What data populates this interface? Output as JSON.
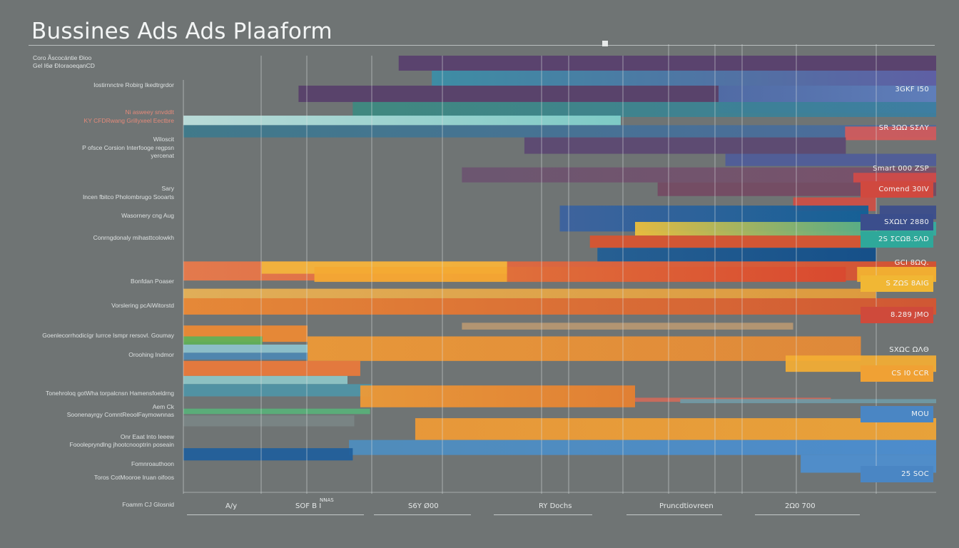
{
  "title": "Bussines Ads Ads Plaaform",
  "subtitle": [
    "Coro Ãscocántie Ðioo",
    "Gel I6ø ÐIoraoeqanCD"
  ],
  "chart_data": {
    "type": "bar",
    "orientation": "horizontal",
    "title": "Bussines Ads Ads Plaaform",
    "xlabel": "",
    "ylabel": "",
    "xlim": [
      0,
      100
    ],
    "grid": true,
    "row_labels": [
      {
        "text": "Iostirnnctre Robirg Ikedtrgrdor",
        "row": 0
      },
      {
        "text": "Ni asweey snvddlt",
        "row": 1,
        "accent": true
      },
      {
        "text": "KY CFDRwang Grillyxeel Eectbre",
        "row": 1.3,
        "accent": true
      },
      {
        "text": "Wiloscit",
        "row": 2
      },
      {
        "text": "P ofsce Corsion Interfooge regpsn",
        "row": 2.3
      },
      {
        "text": "yercenat",
        "row": 2.6
      },
      {
        "text": "Sary",
        "row": 3.8
      },
      {
        "text": "Incen fbitco Pholombrugo Sooarts",
        "row": 4.1
      },
      {
        "text": "Wasornery cng Aug",
        "row": 4.8
      },
      {
        "text": "Conrngdonaly mihasttcolowkh",
        "row": 5.6
      },
      {
        "text": "Bonfdan Poaser",
        "row": 7.2
      },
      {
        "text": "Vorslering pcAiWitorstd",
        "row": 8.1
      },
      {
        "text": "Goenlecorrhodicígr Iurrce Ismpr rersovl. Goumay",
        "row": 9.2
      },
      {
        "text": "Oroohing Indmor",
        "row": 9.9
      },
      {
        "text": "Tonehroloq gotWha torpalcnsn Hamensfoeldrng",
        "row": 11.3
      },
      {
        "text": "Aem Ck",
        "row": 11.8
      },
      {
        "text": "Soonenayrgy ComntReoolFaymownnas",
        "row": 12.1
      },
      {
        "text": "Onr Eaat lnto Ieeew",
        "row": 12.9
      },
      {
        "text": "Fooolepryndlng jhootcnooptrin poseain",
        "row": 13.2
      },
      {
        "text": "Fomnroauthoon",
        "row": 13.9
      },
      {
        "text": "Toros CotMooroe Iruan oifoos",
        "row": 14.4
      },
      {
        "text": "Foamm CJ Glosnid",
        "row": 15.4
      }
    ],
    "bars": [
      {
        "y": 0.0,
        "h": 0.55,
        "start": 28.6,
        "end": 100,
        "color": "#583f6e"
      },
      {
        "y": 0.55,
        "h": 0.55,
        "start": 33.0,
        "end": 100,
        "color": "#3a8fa8",
        "end_color": "#5d5ea8"
      },
      {
        "y": 1.1,
        "h": 0.6,
        "start": 15.3,
        "end": 71.1,
        "color": "#573f6b"
      },
      {
        "y": 1.1,
        "h": 1.0,
        "start": 71.1,
        "end": 100,
        "color": "#4e6aa8",
        "end_color": "#5e7fbf"
      },
      {
        "y": 1.7,
        "h": 0.55,
        "start": 22.5,
        "end": 100,
        "color": "#3c8a80",
        "end_color": "#3b7ea0"
      },
      {
        "y": 2.2,
        "h": 0.35,
        "start": 0.0,
        "end": 58.1,
        "color": "#bfe2df",
        "end_color": "#7fd1cc"
      },
      {
        "y": 2.55,
        "h": 0.45,
        "start": 0.0,
        "end": 100,
        "color": "#3d7a8c",
        "end_color": "#4a6aa0"
      },
      {
        "y": 2.6,
        "h": 0.5,
        "start": 87.9,
        "end": 100,
        "color": "#d35a5a"
      },
      {
        "y": 3.0,
        "h": 0.6,
        "start": 45.3,
        "end": 88.0,
        "color": "#5b4872"
      },
      {
        "y": 3.6,
        "h": 0.45,
        "start": 72.0,
        "end": 100,
        "color": "#4f5c9a"
      },
      {
        "y": 4.1,
        "h": 0.55,
        "start": 37.0,
        "end": 100,
        "color": "#6b5470",
        "end_color": "#7a4f69"
      },
      {
        "y": 4.3,
        "h": 0.45,
        "start": 89.0,
        "end": 100,
        "color": "#d24a48"
      },
      {
        "y": 4.65,
        "h": 0.5,
        "start": 63.0,
        "end": 100,
        "color": "#744a63"
      },
      {
        "y": 5.2,
        "h": 0.5,
        "start": 81.0,
        "end": 92.0,
        "color": "#cf4f45"
      },
      {
        "y": 5.5,
        "h": 0.95,
        "start": 50.0,
        "end": 91.0,
        "color": "#3b62a0",
        "end_color": "#0f5f98"
      },
      {
        "y": 5.5,
        "h": 0.5,
        "start": 92.5,
        "end": 100,
        "color": "#3b4e8c"
      },
      {
        "y": 6.1,
        "h": 0.5,
        "start": 60.0,
        "end": 100,
        "color": "#f0c03a",
        "end_color": "#2fae9c"
      },
      {
        "y": 6.1,
        "h": 0.5,
        "start": 92.5,
        "end": 100,
        "color": "#39aa9c"
      },
      {
        "y": 6.6,
        "h": 0.45,
        "start": 54.0,
        "end": 91.0,
        "color": "#d9542f"
      },
      {
        "y": 7.05,
        "h": 0.5,
        "start": 55.0,
        "end": 92.0,
        "color": "#215e95",
        "end_color": "#0f4d8a"
      },
      {
        "y": 7.55,
        "h": 0.7,
        "start": 0.0,
        "end": 100,
        "color": "#ec7a4a",
        "end_color": "#d9502e"
      },
      {
        "y": 7.55,
        "h": 0.45,
        "start": 10.4,
        "end": 43.0,
        "color": "#f2b63c"
      },
      {
        "y": 7.75,
        "h": 0.55,
        "start": 17.4,
        "end": 43.0,
        "color": "#f4a933"
      },
      {
        "y": 7.75,
        "h": 0.55,
        "start": 43.0,
        "end": 88.0,
        "color": "#e0703a",
        "end_color": "#d9482f"
      },
      {
        "y": 7.75,
        "h": 0.55,
        "start": 89.5,
        "end": 100,
        "color": "#f3b431"
      },
      {
        "y": 8.55,
        "h": 0.35,
        "start": 0.0,
        "end": 92.0,
        "color": "#e9b256",
        "end_color": "#e59d3a"
      },
      {
        "y": 8.9,
        "h": 0.6,
        "start": 0.0,
        "end": 100,
        "color": "#ee8a33",
        "end_color": "#d7552f"
      },
      {
        "y": 9.8,
        "h": 0.25,
        "start": 37.0,
        "end": 81.0,
        "color": "#b79872"
      },
      {
        "y": 9.9,
        "h": 0.6,
        "start": 0.0,
        "end": 16.5,
        "color": "#ee8a33"
      },
      {
        "y": 10.3,
        "h": 0.3,
        "start": 0.0,
        "end": 10.5,
        "color": "#5fb058"
      },
      {
        "y": 10.3,
        "h": 0.9,
        "start": 16.5,
        "end": 90.0,
        "color": "#f09a35",
        "end_color": "#e78a35"
      },
      {
        "y": 10.6,
        "h": 0.3,
        "start": 0.0,
        "end": 16.5,
        "color": "#8ec4cf"
      },
      {
        "y": 10.9,
        "h": 0.25,
        "start": 0.0,
        "end": 16.5,
        "color": "#4d88b3"
      },
      {
        "y": 11.0,
        "h": 0.6,
        "start": 80.0,
        "end": 100,
        "color": "#f3ad34"
      },
      {
        "y": 11.2,
        "h": 0.55,
        "start": 0.0,
        "end": 23.5,
        "color": "#ec7a3a"
      },
      {
        "y": 11.75,
        "h": 0.3,
        "start": 0.0,
        "end": 21.8,
        "color": "#8fc7c8"
      },
      {
        "y": 12.05,
        "h": 0.45,
        "start": 0.0,
        "end": 25.0,
        "color": "#4f95a7"
      },
      {
        "y": 12.1,
        "h": 0.8,
        "start": 23.5,
        "end": 60.0,
        "color": "#f09a35",
        "end_color": "#e9802f"
      },
      {
        "y": 12.55,
        "h": 0.15,
        "start": 60.0,
        "end": 86.0,
        "color": "#cf6a5a"
      },
      {
        "y": 12.6,
        "h": 0.15,
        "start": 66.0,
        "end": 100,
        "color": "#6f9aa6"
      },
      {
        "y": 12.95,
        "h": 0.2,
        "start": 0.0,
        "end": 24.8,
        "color": "#58b07a"
      },
      {
        "y": 13.2,
        "h": 0.4,
        "start": 0.0,
        "end": 22.7,
        "color": "#7a8585"
      },
      {
        "y": 13.3,
        "h": 0.8,
        "start": 30.8,
        "end": 100,
        "color": "#f09a35",
        "end_color": "#f0a535"
      },
      {
        "y": 14.1,
        "h": 0.55,
        "start": 22.0,
        "end": 100,
        "color": "#4e8ebf",
        "end_color": "#4a8ed3"
      },
      {
        "y": 14.4,
        "h": 0.45,
        "start": 0.0,
        "end": 22.5,
        "color": "#1f5f9c"
      },
      {
        "y": 14.65,
        "h": 0.65,
        "start": 82.0,
        "end": 100,
        "color": "#4e8fd0"
      }
    ],
    "value_labels": [
      {
        "text": "3GKF I50",
        "row": 0.9,
        "box": false
      },
      {
        "text": "SR 3ΩΩ SΣΛΥ",
        "row": 2.3,
        "box": false
      },
      {
        "text": "Smart 000 ZSP",
        "row": 3.8,
        "box": false
      },
      {
        "text": "Comend 30IV",
        "row": 4.55,
        "box": true,
        "color": "#d0493f"
      },
      {
        "text": "SXΩLY 2880",
        "row": 5.75,
        "box": true,
        "color": "#3b4e8c"
      },
      {
        "text": "2S ΣCΩB.SΛD",
        "row": 6.4,
        "box": true,
        "color": "#2fa89a"
      },
      {
        "text": "GCI 8ΩQ.",
        "row": 7.25,
        "box": false
      },
      {
        "text": "S ZΩS 8AIG",
        "row": 8.0,
        "box": true,
        "color": "#f1b734"
      },
      {
        "text": "8.289 JMO",
        "row": 9.15,
        "box": true,
        "color": "#cf4a3b"
      },
      {
        "text": "SXΩC ΩΛΘ",
        "row": 10.45,
        "box": false
      },
      {
        "text": "CS I0 CCR",
        "row": 11.3,
        "box": true,
        "color": "#f0a134"
      },
      {
        "text": "MOU",
        "row": 12.8,
        "box": true,
        "color": "#4a86c4"
      },
      {
        "text": "25 SOC",
        "row": 15.0,
        "box": true,
        "color": "#4a86c4"
      }
    ],
    "x_tick_labels": [
      "A/y",
      "SOF B I",
      "S6Y Ø00",
      "RY Dochs",
      "Pruncdtiovreen",
      "2Ω0 700"
    ],
    "x_tick_note": "NNAS"
  }
}
